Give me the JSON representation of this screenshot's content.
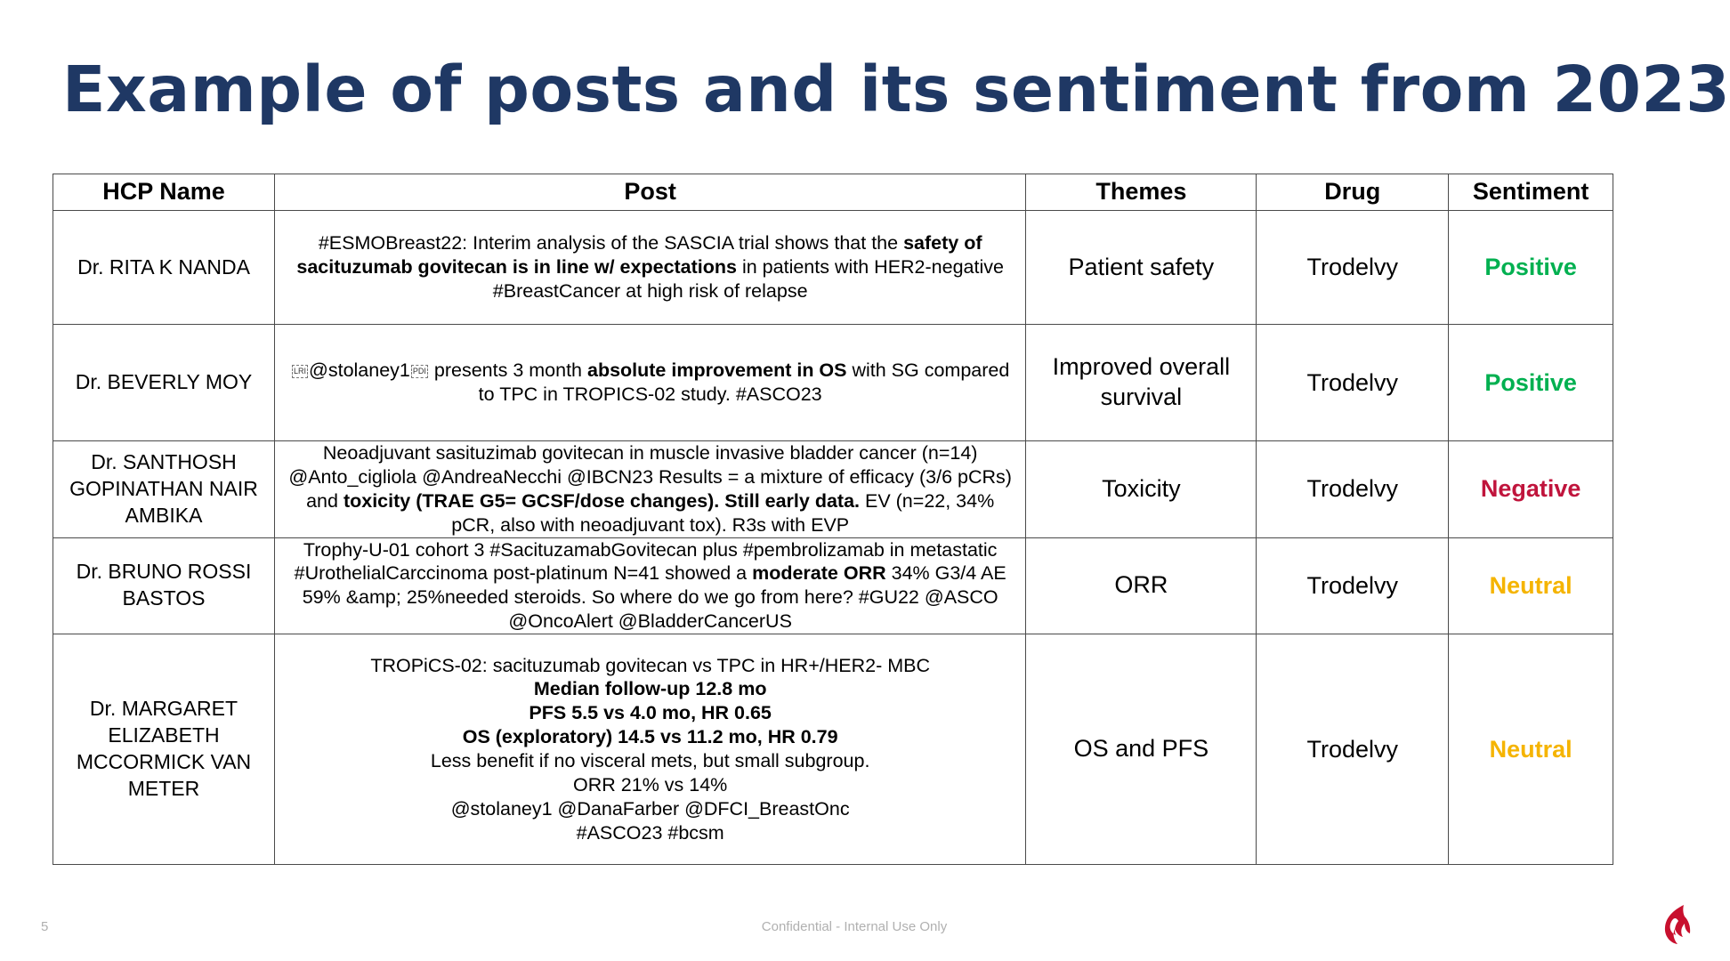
{
  "title": "Example of posts and its sentiment from 2023",
  "table": {
    "headers": [
      "HCP Name",
      "Post",
      "Themes",
      "Drug",
      "Sentiment"
    ],
    "rows": [
      {
        "name": "Dr. RITA K NANDA",
        "post": [
          [
            {
              "t": "#ESMOBreast22: Interim analysis of the SASCIA trial shows that the "
            },
            {
              "t": "safety of",
              "b": true
            }
          ],
          [
            {
              "t": "sacituzumab govitecan is in line w/ expectations",
              "b": true
            },
            {
              "t": " in patients with HER2-negative"
            }
          ],
          [
            {
              "t": "#BreastCancer at high risk of relapse"
            }
          ]
        ],
        "theme": "Patient safety",
        "drug": "Trodelvy",
        "sentiment": "Positive",
        "sentiment_class": "pos"
      },
      {
        "name": "Dr. BEVERLY MOY",
        "post": [
          [
            {
              "t": "LRI",
              "bidi": true
            },
            {
              "t": "@stolaney1"
            },
            {
              "t": "PDI",
              "bidi": true
            },
            {
              "t": " presents 3 month "
            },
            {
              "t": "absolute improvement in OS",
              "b": true
            },
            {
              "t": " with SG compared"
            }
          ],
          [
            {
              "t": "to TPC in TROPICS-02 study. #ASCO23"
            }
          ]
        ],
        "theme": "Improved overall survival",
        "drug": "Trodelvy",
        "sentiment": "Positive",
        "sentiment_class": "pos"
      },
      {
        "name": "Dr. SANTHOSH GOPINATHAN NAIR AMBIKA",
        "post": [
          [
            {
              "t": "Neoadjuvant sasituzimab govitecan in muscle invasive bladder cancer (n=14)"
            }
          ],
          [
            {
              "t": "@Anto_cigliola @AndreaNecchi @IBCN23 Results = a mixture of efficacy (3/6 pCRs)"
            }
          ],
          [
            {
              "t": "and "
            },
            {
              "t": "toxicity (TRAE G5= GCSF/dose changes). Still early data.",
              "b": true
            },
            {
              "t": " EV (n=22, 34%"
            }
          ],
          [
            {
              "t": "pCR, also with neoadjuvant tox). R3s with EVP"
            }
          ]
        ],
        "theme": "Toxicity",
        "drug": "Trodelvy",
        "sentiment": "Negative",
        "sentiment_class": "neg"
      },
      {
        "name": "Dr. BRUNO ROSSI BASTOS",
        "post": [
          [
            {
              "t": "Trophy-U-01 cohort 3 #SacituzamabGovitecan plus #pembrolizamab in metastatic"
            }
          ],
          [
            {
              "t": "#UrothelialCarccinoma post-platinum N=41 showed a "
            },
            {
              "t": "moderate ORR",
              "b": true
            },
            {
              "t": " 34% G3/4 AE"
            }
          ],
          [
            {
              "t": "59% &amp; 25%needed steroids. So where do we go from here? #GU22 @ASCO"
            }
          ],
          [
            {
              "t": "@OncoAlert @BladderCancerUS"
            }
          ]
        ],
        "theme": "ORR",
        "drug": "Trodelvy",
        "sentiment": "Neutral",
        "sentiment_class": "neu"
      },
      {
        "name": "Dr. MARGARET ELIZABETH MCCORMICK VAN METER",
        "post": [
          [
            {
              "t": "TROPiCS-02: sacituzumab govitecan vs TPC in HR+/HER2- MBC"
            }
          ],
          [
            {
              "t": "Median follow-up 12.8 mo",
              "b": true
            }
          ],
          [
            {
              "t": "PFS 5.5 vs 4.0 mo, HR 0.65",
              "b": true
            }
          ],
          [
            {
              "t": "OS (exploratory) 14.5 vs 11.2 mo, HR 0.79",
              "b": true
            }
          ],
          [
            {
              "t": "Less benefit if no visceral mets, but small subgroup."
            }
          ],
          [
            {
              "t": "ORR 21% vs 14%"
            }
          ],
          [
            {
              "t": "@stolaney1 @DanaFarber @DFCI_BreastOnc"
            }
          ],
          [
            {
              "t": "#ASCO23 #bcsm"
            }
          ]
        ],
        "theme": "OS and PFS",
        "drug": "Trodelvy",
        "sentiment": "Neutral",
        "sentiment_class": "neu"
      }
    ]
  },
  "footer": {
    "page_number": "5",
    "confidentiality": "Confidential - Internal Use Only"
  },
  "colors": {
    "title": "#1f3864",
    "positive": "#00b050",
    "negative": "#c0143c",
    "neutral": "#f5b400",
    "logo": "#c8102e"
  },
  "logo_icon": "company-logo-flame-icon"
}
